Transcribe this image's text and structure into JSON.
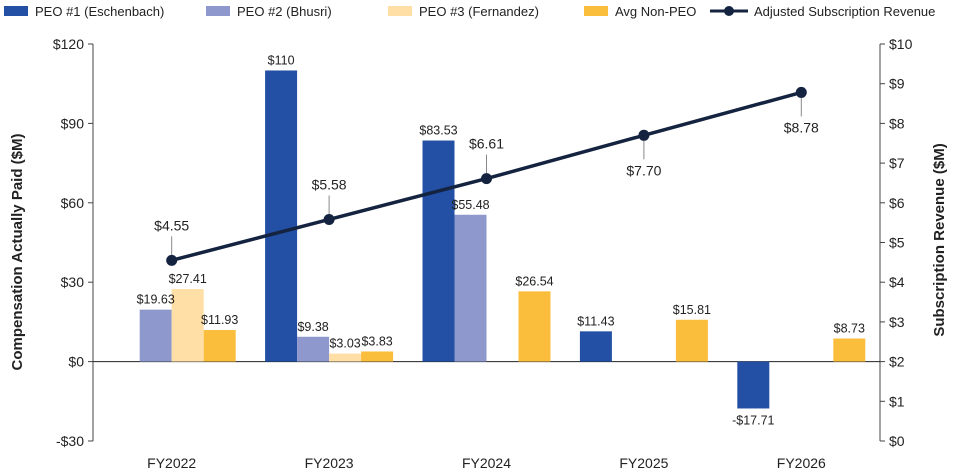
{
  "chart_data": {
    "type": "bar",
    "categories": [
      "FY2022",
      "FY2023",
      "FY2024",
      "FY2025",
      "FY2026"
    ],
    "series": [
      {
        "name": "PEO #1 (Eschenbach)",
        "color": "#2350A4",
        "values": [
          null,
          110,
          83.53,
          11.43,
          -17.71
        ],
        "labels": [
          "",
          "$110",
          "$83.53",
          "$11.43",
          "-$17.71"
        ]
      },
      {
        "name": "PEO #2 (Bhusri)",
        "color": "#8E98CD",
        "values": [
          19.63,
          9.38,
          55.48,
          null,
          null
        ],
        "labels": [
          "$19.63",
          "$9.38",
          "$55.48",
          "",
          ""
        ]
      },
      {
        "name": "PEO #3 (Fernandez)",
        "color": "#FFDFA6",
        "values": [
          27.41,
          3.03,
          null,
          null,
          null
        ],
        "labels": [
          "$27.41",
          "$3.03",
          "",
          "",
          ""
        ]
      },
      {
        "name": "Avg Non-PEO",
        "color": "#FBBE3C",
        "values": [
          11.93,
          3.83,
          26.54,
          15.81,
          8.73
        ],
        "labels": [
          "$11.93",
          "$3.83",
          "$26.54",
          "$15.81",
          "$8.73"
        ]
      }
    ],
    "line_series": {
      "name": "Adjusted Subscription Revenue",
      "color": "#14233F",
      "values": [
        4.55,
        5.58,
        6.61,
        7.7,
        8.78
      ],
      "labels": [
        "$4.55",
        "$5.58",
        "$6.61",
        "$7.70",
        "$8.78"
      ]
    },
    "y_left": {
      "label": "Compensation Actually Paid ($M)",
      "min": -30,
      "max": 120,
      "ticks": [
        -30,
        0,
        30,
        60,
        90,
        120
      ],
      "tick_labels": [
        "-$30",
        "$0",
        "$30",
        "$60",
        "$90",
        "$120"
      ]
    },
    "y_right": {
      "label": "Subscription Revenue ($M)",
      "min": 0,
      "max": 10,
      "ticks": [
        0,
        1,
        2,
        3,
        4,
        5,
        6,
        7,
        8,
        9,
        10
      ],
      "tick_labels": [
        "$0",
        "$1",
        "$2",
        "$3",
        "$4",
        "$5",
        "$6",
        "$7",
        "$8",
        "$9",
        "$10"
      ]
    },
    "xlabel": "",
    "legend_position": "top",
    "grid": false
  }
}
